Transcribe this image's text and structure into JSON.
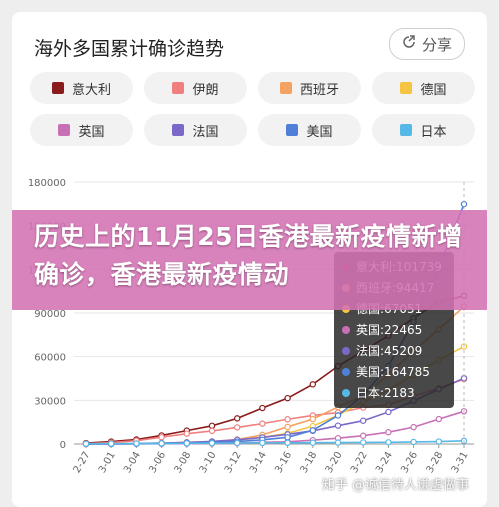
{
  "title": "海外多国累计确诊趋势",
  "share_label": "分享",
  "banner": "历史上的11月25日香港最新疫情新增确诊，香港最新疫情动",
  "watermark": "知乎 @诚信待人谦虚做事",
  "tooltip": {
    "rows": [
      {
        "label": "意大利:101739",
        "color": "#8b1a1a"
      },
      {
        "label": "西班牙:94417",
        "color": "#f4a261"
      },
      {
        "label": "德国:67051",
        "color": "#f4c542"
      },
      {
        "label": "英国:22465",
        "color": "#c86fb5"
      },
      {
        "label": "法国:45209",
        "color": "#7b68c8"
      },
      {
        "label": "美国:164785",
        "color": "#4f7fd9"
      },
      {
        "label": "日本:2183",
        "color": "#56b8e6"
      }
    ]
  },
  "chart_data": {
    "type": "line",
    "x": [
      "2-27",
      "3-01",
      "3-04",
      "3-06",
      "3-08",
      "3-10",
      "3-12",
      "3-14",
      "3-16",
      "3-18",
      "3-20",
      "3-22",
      "3-24",
      "3-26",
      "3-28",
      "3-31"
    ],
    "ylim": [
      0,
      180000
    ],
    "yticks": [
      "180000",
      "150000",
      "120000",
      "90000",
      "60000",
      "30000",
      "0"
    ],
    "yticks_values": [
      180000,
      150000,
      120000,
      90000,
      60000,
      30000,
      0
    ],
    "series": [
      {
        "name": "意大利",
        "color": "#8b1a1a",
        "values": [
          650,
          1700,
          3100,
          5900,
          9200,
          12500,
          17600,
          24700,
          31500,
          41000,
          53500,
          63900,
          74400,
          86500,
          97700,
          101739
        ]
      },
      {
        "name": "伊朗",
        "color": "#f08080",
        "values": [
          250,
          980,
          2300,
          4700,
          7100,
          9000,
          11400,
          14000,
          17000,
          19600,
          21600,
          25000,
          27000,
          33000,
          38300,
          44600
        ]
      },
      {
        "name": "西班牙",
        "color": "#f4a261",
        "values": [
          25,
          85,
          220,
          400,
          1200,
          1700,
          3100,
          6300,
          11800,
          17100,
          25400,
          33000,
          47600,
          64000,
          78800,
          94417
        ]
      },
      {
        "name": "德国",
        "color": "#f4c542",
        "values": [
          40,
          130,
          260,
          670,
          1040,
          1570,
          2700,
          4600,
          7300,
          12300,
          19800,
          29000,
          37300,
          47300,
          57700,
          67051
        ]
      },
      {
        "name": "英国",
        "color": "#c86fb5",
        "values": [
          15,
          40,
          90,
          170,
          280,
          390,
          590,
          1140,
          1550,
          2630,
          4000,
          5700,
          8100,
          11600,
          17100,
          22465
        ]
      },
      {
        "name": "法国",
        "color": "#7b68c8",
        "values": [
          40,
          130,
          290,
          650,
          1120,
          1780,
          2880,
          4500,
          6630,
          9040,
          12600,
          16000,
          22000,
          29600,
          37600,
          45209
        ]
      },
      {
        "name": "美国",
        "color": "#4f7fd9",
        "values": [
          60,
          75,
          150,
          260,
          540,
          1000,
          1660,
          2900,
          4600,
          9400,
          19600,
          33500,
          53700,
          83800,
          121000,
          164785
        ]
      },
      {
        "name": "日本",
        "color": "#56b8e6",
        "values": [
          190,
          240,
          330,
          420,
          490,
          570,
          680,
          780,
          820,
          890,
          960,
          1090,
          1190,
          1390,
          1700,
          2183
        ]
      }
    ]
  }
}
